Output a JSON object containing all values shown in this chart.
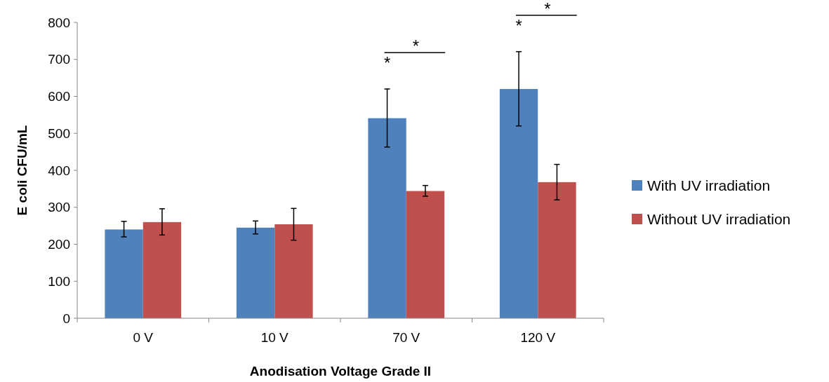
{
  "chart_data": {
    "type": "bar",
    "xlabel": "Anodisation Voltage Grade II",
    "ylabel": "E coli CFU/mL",
    "categories": [
      "0 V",
      "10 V",
      "70 V",
      "120 V"
    ],
    "series": [
      {
        "name": "With UV irradiation",
        "color": "#4f81bd",
        "values": [
          240,
          245,
          541,
          620
        ],
        "errors": [
          [
            220,
            262
          ],
          [
            228,
            263
          ],
          [
            463,
            620
          ],
          [
            520,
            721
          ]
        ]
      },
      {
        "name": "Without UV irradiation",
        "color": "#c0504d",
        "values": [
          260,
          254,
          344,
          368
        ],
        "errors": [
          [
            225,
            296
          ],
          [
            211,
            297
          ],
          [
            330,
            359
          ],
          [
            320,
            416
          ]
        ]
      }
    ],
    "ylim": [
      0,
      800
    ],
    "yticks": [
      0,
      100,
      200,
      300,
      400,
      500,
      600,
      700,
      800
    ],
    "grid": false,
    "legend": "right",
    "annotations": [
      "*",
      "*",
      "*",
      "*"
    ]
  }
}
